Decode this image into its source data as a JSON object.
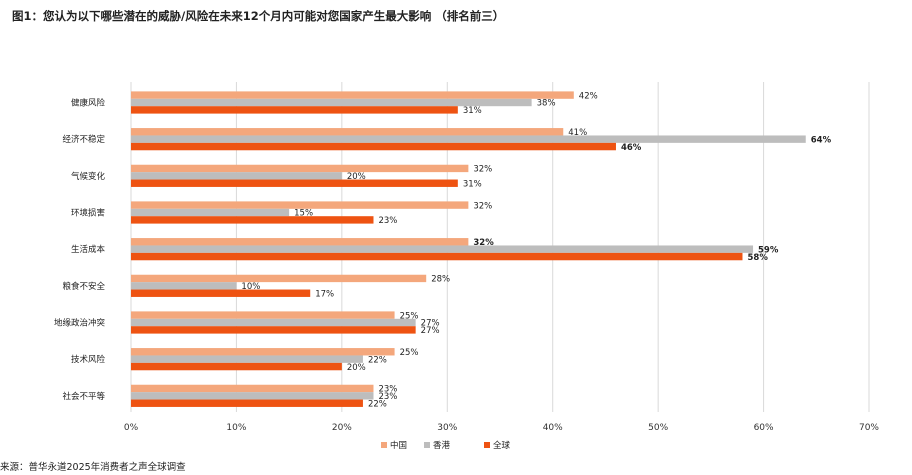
{
  "title": "图1：您认为以下哪些潜在的威胁/风险在未来12个月内可能对您国家产生最大影响 （排名前三）",
  "source": "来源：普华永道2025年消费者之声全球调查",
  "colors": {
    "中国": "#F4A77C",
    "香港": "#BDBDBD",
    "全球": "#EE5312",
    "grid": "#D9D9D9"
  },
  "chart_data": {
    "type": "bar",
    "orientation": "horizontal",
    "categories": [
      "健康风险",
      "经济不稳定",
      "气候变化",
      "环境损害",
      "生活成本",
      "粮食不安全",
      "地缘政治冲突",
      "技术风险",
      "社会不平等"
    ],
    "series": [
      {
        "name": "中国",
        "values": [
          42,
          41,
          32,
          32,
          32,
          28,
          25,
          25,
          23
        ],
        "labels": [
          "42%",
          "41%",
          "32%",
          "32%",
          "32%",
          "28%",
          "25%",
          "25%",
          "23%"
        ],
        "bold": [
          false,
          false,
          false,
          false,
          true,
          false,
          false,
          false,
          false
        ]
      },
      {
        "name": "香港",
        "values": [
          38,
          64,
          20,
          15,
          59,
          10,
          27,
          22,
          23
        ],
        "labels": [
          "38%",
          "64%",
          "20%",
          "15%",
          "59%",
          "10%",
          "27%",
          "22%",
          "23%"
        ],
        "bold": [
          false,
          true,
          false,
          false,
          true,
          false,
          false,
          false,
          false
        ]
      },
      {
        "name": "全球",
        "values": [
          31,
          46,
          31,
          23,
          58,
          17,
          27,
          20,
          22
        ],
        "labels": [
          "31%",
          "46%",
          "31%",
          "23%",
          "58%",
          "17%",
          "27%",
          "20%",
          "22%"
        ],
        "bold": [
          false,
          true,
          false,
          false,
          true,
          false,
          false,
          false,
          false
        ]
      }
    ],
    "x_ticks": [
      "0%",
      "10%",
      "20%",
      "30%",
      "40%",
      "50%",
      "60%",
      "70%"
    ],
    "xlim": [
      0,
      70
    ],
    "grid": true,
    "legend": "bottom"
  }
}
